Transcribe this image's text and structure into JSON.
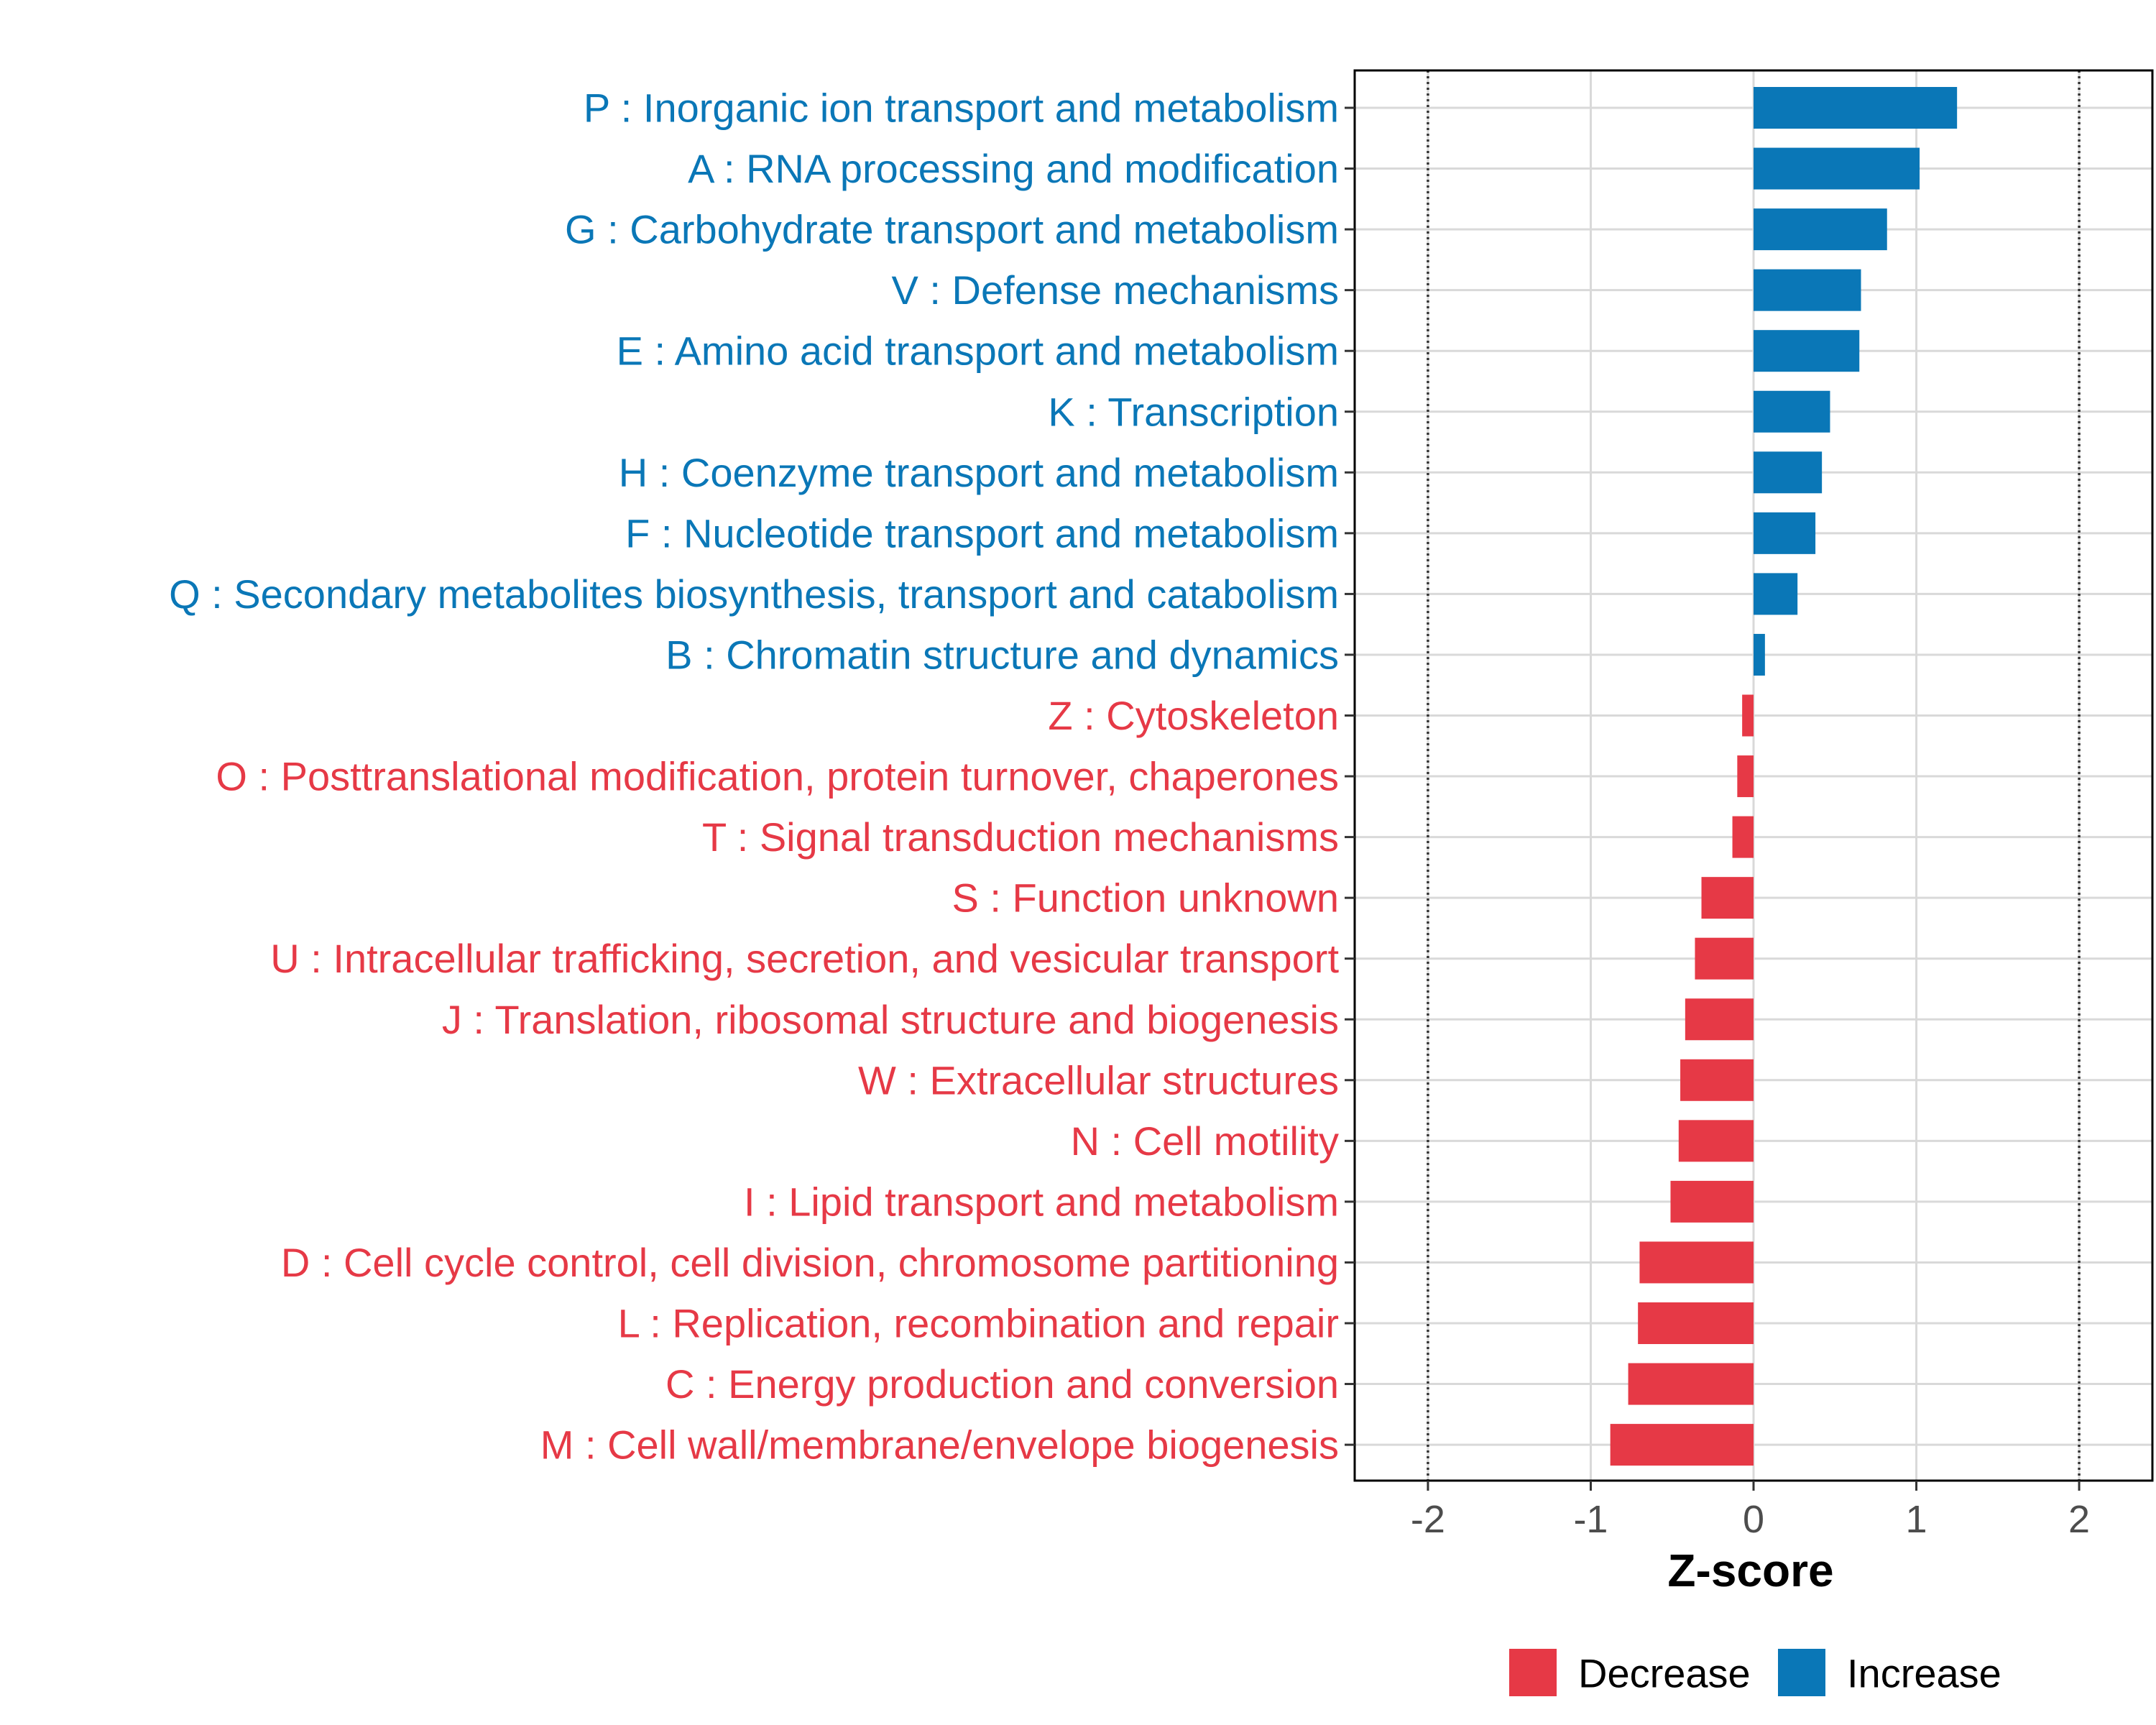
{
  "chart_data": {
    "type": "bar",
    "orientation": "horizontal",
    "xlabel": "Z-score",
    "xlim": [
      -2.45,
      2.45
    ],
    "xticks": [
      -2,
      -1,
      0,
      1,
      2
    ],
    "xtick_labels": [
      "-2",
      "-1",
      "0",
      "1",
      "2"
    ],
    "reference_lines": [
      -2,
      2
    ],
    "colors": {
      "Decrease": "#e63946",
      "Increase": "#0a77b7"
    },
    "legend": {
      "position": "bottom",
      "entries": [
        {
          "label": "Decrease",
          "color": "#e63946"
        },
        {
          "label": "Increase",
          "color": "#0a77b7"
        }
      ]
    },
    "bars": [
      {
        "label": "P : Inorganic ion transport and metabolism",
        "value": 1.25,
        "group": "Increase"
      },
      {
        "label": "A : RNA processing and modification",
        "value": 1.02,
        "group": "Increase"
      },
      {
        "label": "G : Carbohydrate transport and metabolism",
        "value": 0.82,
        "group": "Increase"
      },
      {
        "label": "V : Defense mechanisms",
        "value": 0.66,
        "group": "Increase"
      },
      {
        "label": "E : Amino acid transport and metabolism",
        "value": 0.65,
        "group": "Increase"
      },
      {
        "label": "K : Transcription",
        "value": 0.47,
        "group": "Increase"
      },
      {
        "label": "H : Coenzyme transport and metabolism",
        "value": 0.42,
        "group": "Increase"
      },
      {
        "label": "F : Nucleotide transport and metabolism",
        "value": 0.38,
        "group": "Increase"
      },
      {
        "label": "Q : Secondary metabolites biosynthesis, transport and catabolism",
        "value": 0.27,
        "group": "Increase"
      },
      {
        "label": "B : Chromatin structure and dynamics",
        "value": 0.07,
        "group": "Increase"
      },
      {
        "label": "Z : Cytoskeleton",
        "value": -0.07,
        "group": "Decrease"
      },
      {
        "label": "O : Posttranslational modification, protein turnover, chaperones",
        "value": -0.1,
        "group": "Decrease"
      },
      {
        "label": "T : Signal transduction mechanisms",
        "value": -0.13,
        "group": "Decrease"
      },
      {
        "label": "S : Function unknown",
        "value": -0.32,
        "group": "Decrease"
      },
      {
        "label": "U : Intracellular trafficking, secretion, and vesicular transport",
        "value": -0.36,
        "group": "Decrease"
      },
      {
        "label": "J : Translation, ribosomal structure and biogenesis",
        "value": -0.42,
        "group": "Decrease"
      },
      {
        "label": "W : Extracellular structures",
        "value": -0.45,
        "group": "Decrease"
      },
      {
        "label": "N : Cell motility",
        "value": -0.46,
        "group": "Decrease"
      },
      {
        "label": "I : Lipid transport and metabolism",
        "value": -0.51,
        "group": "Decrease"
      },
      {
        "label": "D : Cell cycle control, cell division, chromosome partitioning",
        "value": -0.7,
        "group": "Decrease"
      },
      {
        "label": "L : Replication, recombination and repair",
        "value": -0.71,
        "group": "Decrease"
      },
      {
        "label": "C : Energy production and conversion",
        "value": -0.77,
        "group": "Decrease"
      },
      {
        "label": "M : Cell wall/membrane/envelope biogenesis",
        "value": -0.88,
        "group": "Decrease"
      }
    ]
  }
}
